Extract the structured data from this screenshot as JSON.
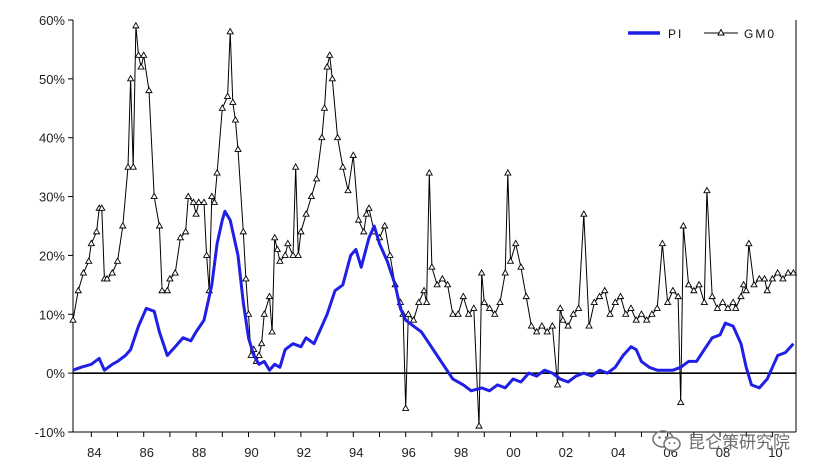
{
  "chart_data": {
    "type": "line",
    "title": "",
    "xlabel": "",
    "ylabel": "",
    "xlim": [
      1983.3,
      2010.9
    ],
    "ylim": [
      -10,
      60
    ],
    "grid": false,
    "legend": {
      "position": "top-right"
    },
    "x_ticks": [
      1984,
      1986,
      1988,
      1990,
      1992,
      1994,
      1996,
      1998,
      2000,
      2002,
      2004,
      2006,
      2008,
      2010
    ],
    "x_tick_labels": [
      "84",
      "86",
      "88",
      "90",
      "92",
      "94",
      "96",
      "98",
      "00",
      "02",
      "04",
      "06",
      "08",
      "10"
    ],
    "y_ticks": [
      -10,
      0,
      10,
      20,
      30,
      40,
      50,
      60
    ],
    "y_tick_labels": [
      "-10%",
      "0%",
      "10%",
      "20%",
      "30%",
      "40%",
      "50%",
      "60%"
    ],
    "series": [
      {
        "name": "PI",
        "color": "#1f1fe6",
        "marker": "none",
        "points": [
          [
            1983.3,
            0.5
          ],
          [
            1983.6,
            1
          ],
          [
            1984.0,
            1.5
          ],
          [
            1984.3,
            2.5
          ],
          [
            1984.5,
            0.5
          ],
          [
            1984.8,
            1.5
          ],
          [
            1985.0,
            2
          ],
          [
            1985.3,
            3
          ],
          [
            1985.5,
            4
          ],
          [
            1985.8,
            8
          ],
          [
            1986.1,
            11
          ],
          [
            1986.4,
            10.5
          ],
          [
            1986.6,
            7
          ],
          [
            1986.9,
            3
          ],
          [
            1987.2,
            4.5
          ],
          [
            1987.5,
            6
          ],
          [
            1987.8,
            5.5
          ],
          [
            1988.0,
            7
          ],
          [
            1988.3,
            9
          ],
          [
            1988.6,
            15
          ],
          [
            1988.8,
            22
          ],
          [
            1989.0,
            26
          ],
          [
            1989.1,
            27.5
          ],
          [
            1989.3,
            26
          ],
          [
            1989.6,
            20
          ],
          [
            1989.8,
            12
          ],
          [
            1990.0,
            6
          ],
          [
            1990.2,
            3
          ],
          [
            1990.4,
            1.5
          ],
          [
            1990.6,
            2
          ],
          [
            1990.8,
            0.5
          ],
          [
            1991.0,
            1.5
          ],
          [
            1991.2,
            1
          ],
          [
            1991.4,
            4
          ],
          [
            1991.7,
            5
          ],
          [
            1992.0,
            4.5
          ],
          [
            1992.2,
            6
          ],
          [
            1992.5,
            5
          ],
          [
            1992.8,
            8
          ],
          [
            1993.0,
            10
          ],
          [
            1993.3,
            14
          ],
          [
            1993.6,
            15
          ],
          [
            1993.9,
            20
          ],
          [
            1994.1,
            21
          ],
          [
            1994.3,
            18
          ],
          [
            1994.6,
            23
          ],
          [
            1994.8,
            25
          ],
          [
            1995.0,
            22
          ],
          [
            1995.3,
            19
          ],
          [
            1995.6,
            15
          ],
          [
            1995.8,
            11
          ],
          [
            1996.0,
            9
          ],
          [
            1996.3,
            8
          ],
          [
            1996.6,
            7
          ],
          [
            1996.9,
            5
          ],
          [
            1997.2,
            3
          ],
          [
            1997.5,
            1
          ],
          [
            1997.8,
            -1
          ],
          [
            1998.2,
            -2
          ],
          [
            1998.5,
            -3
          ],
          [
            1998.9,
            -2.5
          ],
          [
            1999.2,
            -3
          ],
          [
            1999.5,
            -2
          ],
          [
            1999.8,
            -2.5
          ],
          [
            2000.1,
            -1
          ],
          [
            2000.4,
            -1.5
          ],
          [
            2000.7,
            0
          ],
          [
            2001.0,
            -0.5
          ],
          [
            2001.3,
            0.5
          ],
          [
            2001.6,
            0
          ],
          [
            2001.9,
            -1
          ],
          [
            2002.2,
            -1.5
          ],
          [
            2002.5,
            -0.5
          ],
          [
            2002.8,
            0
          ],
          [
            2003.1,
            -0.5
          ],
          [
            2003.4,
            0.5
          ],
          [
            2003.7,
            0
          ],
          [
            2004.0,
            1
          ],
          [
            2004.3,
            3
          ],
          [
            2004.6,
            4.5
          ],
          [
            2004.8,
            4
          ],
          [
            2005.0,
            2
          ],
          [
            2005.3,
            1
          ],
          [
            2005.6,
            0.5
          ],
          [
            2005.9,
            0.5
          ],
          [
            2006.2,
            0.5
          ],
          [
            2006.5,
            1
          ],
          [
            2006.8,
            2
          ],
          [
            2007.1,
            2
          ],
          [
            2007.4,
            4
          ],
          [
            2007.7,
            6
          ],
          [
            2008.0,
            6.5
          ],
          [
            2008.2,
            8.5
          ],
          [
            2008.5,
            8
          ],
          [
            2008.8,
            5
          ],
          [
            2009.0,
            1
          ],
          [
            2009.2,
            -2
          ],
          [
            2009.5,
            -2.5
          ],
          [
            2009.8,
            -1
          ],
          [
            2010.0,
            1
          ],
          [
            2010.2,
            3
          ],
          [
            2010.5,
            3.5
          ],
          [
            2010.8,
            5
          ]
        ]
      },
      {
        "name": "GM0",
        "color": "#000000",
        "marker": "triangle",
        "points": [
          [
            1983.3,
            9
          ],
          [
            1983.5,
            14
          ],
          [
            1983.7,
            17
          ],
          [
            1983.9,
            19
          ],
          [
            1984.0,
            22
          ],
          [
            1984.2,
            24
          ],
          [
            1984.3,
            28
          ],
          [
            1984.4,
            28
          ],
          [
            1984.5,
            16
          ],
          [
            1984.6,
            16
          ],
          [
            1984.8,
            17
          ],
          [
            1985.0,
            19
          ],
          [
            1985.2,
            25
          ],
          [
            1985.4,
            35
          ],
          [
            1985.5,
            50
          ],
          [
            1985.6,
            35
          ],
          [
            1985.7,
            59
          ],
          [
            1985.8,
            54
          ],
          [
            1985.9,
            52
          ],
          [
            1986.0,
            54
          ],
          [
            1986.2,
            48
          ],
          [
            1986.4,
            30
          ],
          [
            1986.6,
            25
          ],
          [
            1986.7,
            14
          ],
          [
            1986.9,
            14
          ],
          [
            1987.0,
            16
          ],
          [
            1987.2,
            17
          ],
          [
            1987.4,
            23
          ],
          [
            1987.6,
            24
          ],
          [
            1987.7,
            30
          ],
          [
            1987.9,
            29
          ],
          [
            1988.0,
            27
          ],
          [
            1988.1,
            29
          ],
          [
            1988.3,
            29
          ],
          [
            1988.4,
            20
          ],
          [
            1988.5,
            14
          ],
          [
            1988.6,
            30
          ],
          [
            1988.7,
            29
          ],
          [
            1988.8,
            34
          ],
          [
            1989.0,
            45
          ],
          [
            1989.2,
            47
          ],
          [
            1989.3,
            58
          ],
          [
            1989.4,
            46
          ],
          [
            1989.5,
            43
          ],
          [
            1989.6,
            38
          ],
          [
            1989.8,
            24
          ],
          [
            1989.9,
            16
          ],
          [
            1990.0,
            10
          ],
          [
            1990.1,
            3
          ],
          [
            1990.2,
            4
          ],
          [
            1990.3,
            2
          ],
          [
            1990.4,
            3
          ],
          [
            1990.5,
            5
          ],
          [
            1990.6,
            10
          ],
          [
            1990.8,
            13
          ],
          [
            1990.9,
            7
          ],
          [
            1991.0,
            23
          ],
          [
            1991.1,
            21
          ],
          [
            1991.2,
            19
          ],
          [
            1991.4,
            20
          ],
          [
            1991.5,
            22
          ],
          [
            1991.7,
            20
          ],
          [
            1991.8,
            35
          ],
          [
            1991.9,
            20
          ],
          [
            1992.0,
            24
          ],
          [
            1992.2,
            27
          ],
          [
            1992.4,
            30
          ],
          [
            1992.6,
            33
          ],
          [
            1992.8,
            40
          ],
          [
            1992.9,
            45
          ],
          [
            1993.0,
            52
          ],
          [
            1993.1,
            54
          ],
          [
            1993.2,
            50
          ],
          [
            1993.4,
            40
          ],
          [
            1993.6,
            35
          ],
          [
            1993.8,
            31
          ],
          [
            1994.0,
            37
          ],
          [
            1994.2,
            26
          ],
          [
            1994.4,
            24
          ],
          [
            1994.5,
            27
          ],
          [
            1994.6,
            28
          ],
          [
            1994.8,
            24
          ],
          [
            1995.0,
            23
          ],
          [
            1995.2,
            25
          ],
          [
            1995.4,
            20
          ],
          [
            1995.6,
            15
          ],
          [
            1995.8,
            12
          ],
          [
            1995.9,
            10
          ],
          [
            1996.0,
            -6
          ],
          [
            1996.1,
            10
          ],
          [
            1996.3,
            9
          ],
          [
            1996.5,
            12
          ],
          [
            1996.7,
            14
          ],
          [
            1996.8,
            12
          ],
          [
            1996.9,
            34
          ],
          [
            1997.0,
            18
          ],
          [
            1997.2,
            15
          ],
          [
            1997.4,
            16
          ],
          [
            1997.6,
            15
          ],
          [
            1997.8,
            10
          ],
          [
            1998.0,
            10
          ],
          [
            1998.2,
            13
          ],
          [
            1998.4,
            10
          ],
          [
            1998.6,
            11
          ],
          [
            1998.8,
            -9
          ],
          [
            1998.9,
            17
          ],
          [
            1999.0,
            12
          ],
          [
            1999.2,
            11
          ],
          [
            1999.4,
            10
          ],
          [
            1999.6,
            12
          ],
          [
            1999.8,
            17
          ],
          [
            1999.9,
            34
          ],
          [
            2000.0,
            19
          ],
          [
            2000.2,
            22
          ],
          [
            2000.4,
            18
          ],
          [
            2000.6,
            13
          ],
          [
            2000.8,
            8
          ],
          [
            2001.0,
            7
          ],
          [
            2001.2,
            8
          ],
          [
            2001.4,
            7
          ],
          [
            2001.6,
            8
          ],
          [
            2001.8,
            -2
          ],
          [
            2001.9,
            11
          ],
          [
            2002.0,
            9
          ],
          [
            2002.2,
            8
          ],
          [
            2002.4,
            10
          ],
          [
            2002.6,
            11
          ],
          [
            2002.8,
            27
          ],
          [
            2003.0,
            8
          ],
          [
            2003.2,
            12
          ],
          [
            2003.4,
            13
          ],
          [
            2003.6,
            14
          ],
          [
            2003.8,
            10
          ],
          [
            2004.0,
            12
          ],
          [
            2004.2,
            13
          ],
          [
            2004.4,
            10
          ],
          [
            2004.6,
            11
          ],
          [
            2004.8,
            9
          ],
          [
            2005.0,
            10
          ],
          [
            2005.2,
            9
          ],
          [
            2005.4,
            10
          ],
          [
            2005.6,
            11
          ],
          [
            2005.8,
            22
          ],
          [
            2006.0,
            12
          ],
          [
            2006.2,
            14
          ],
          [
            2006.4,
            13
          ],
          [
            2006.5,
            -5
          ],
          [
            2006.6,
            25
          ],
          [
            2006.8,
            15
          ],
          [
            2007.0,
            14
          ],
          [
            2007.2,
            15
          ],
          [
            2007.4,
            12
          ],
          [
            2007.5,
            31
          ],
          [
            2007.7,
            13
          ],
          [
            2007.9,
            11
          ],
          [
            2008.1,
            12
          ],
          [
            2008.3,
            11
          ],
          [
            2008.5,
            12
          ],
          [
            2008.6,
            11
          ],
          [
            2008.8,
            13
          ],
          [
            2008.9,
            15
          ],
          [
            2009.0,
            14
          ],
          [
            2009.1,
            22
          ],
          [
            2009.3,
            15
          ],
          [
            2009.5,
            16
          ],
          [
            2009.7,
            16
          ],
          [
            2009.8,
            14
          ],
          [
            2010.0,
            16
          ],
          [
            2010.2,
            17
          ],
          [
            2010.4,
            16
          ],
          [
            2010.6,
            17
          ],
          [
            2010.8,
            17
          ]
        ]
      }
    ]
  },
  "watermark": {
    "text": "昆仑策研究院",
    "icon": "wechat-icon"
  }
}
